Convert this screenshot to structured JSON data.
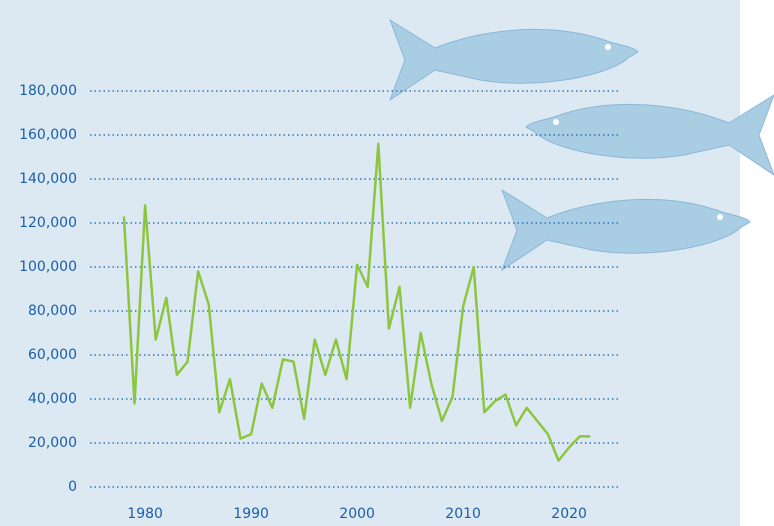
{
  "chart_data": {
    "type": "line",
    "x": [
      1978,
      1979,
      1980,
      1981,
      1982,
      1983,
      1984,
      1985,
      1986,
      1987,
      1988,
      1989,
      1990,
      1991,
      1992,
      1993,
      1994,
      1995,
      1996,
      1997,
      1998,
      1999,
      2000,
      2001,
      2002,
      2003,
      2004,
      2005,
      2006,
      2007,
      2008,
      2009,
      2010,
      2011,
      2012,
      2013,
      2014,
      2015,
      2016,
      2017,
      2018,
      2019,
      2020,
      2021,
      2022
    ],
    "series": [
      {
        "color": "#8cc63f",
        "values": [
          123000,
          38000,
          128000,
          67000,
          86000,
          51000,
          57000,
          98000,
          83000,
          34000,
          49000,
          22000,
          24000,
          47000,
          36000,
          58000,
          57000,
          31000,
          67000,
          51000,
          67000,
          49000,
          101000,
          91000,
          156000,
          72000,
          91000,
          36000,
          70000,
          47000,
          30000,
          41000,
          82000,
          100000,
          34000,
          39000,
          42000,
          28000,
          36000,
          30000,
          24000,
          12000,
          18000,
          23000,
          23000
        ]
      }
    ],
    "xlim": [
      1974.8,
      2024.8
    ],
    "xticks": [
      1980,
      1990,
      2000,
      2010,
      2020
    ],
    "ylim": [
      0,
      180000
    ],
    "yticks": [
      0,
      {
        "value": 20000,
        "label": "20,000"
      },
      {
        "value": 40000,
        "label": "40,000"
      },
      {
        "value": 60000,
        "label": "60,000"
      },
      {
        "value": 80000,
        "label": "80,000"
      },
      {
        "value": 100000,
        "label": "100,000"
      },
      {
        "value": 120000,
        "label": "120,000"
      },
      {
        "value": 140000,
        "label": "140,000"
      },
      {
        "value": 160000,
        "label": "160,000"
      },
      {
        "value": 180000,
        "label": "180,000"
      }
    ],
    "grid": true
  }
}
